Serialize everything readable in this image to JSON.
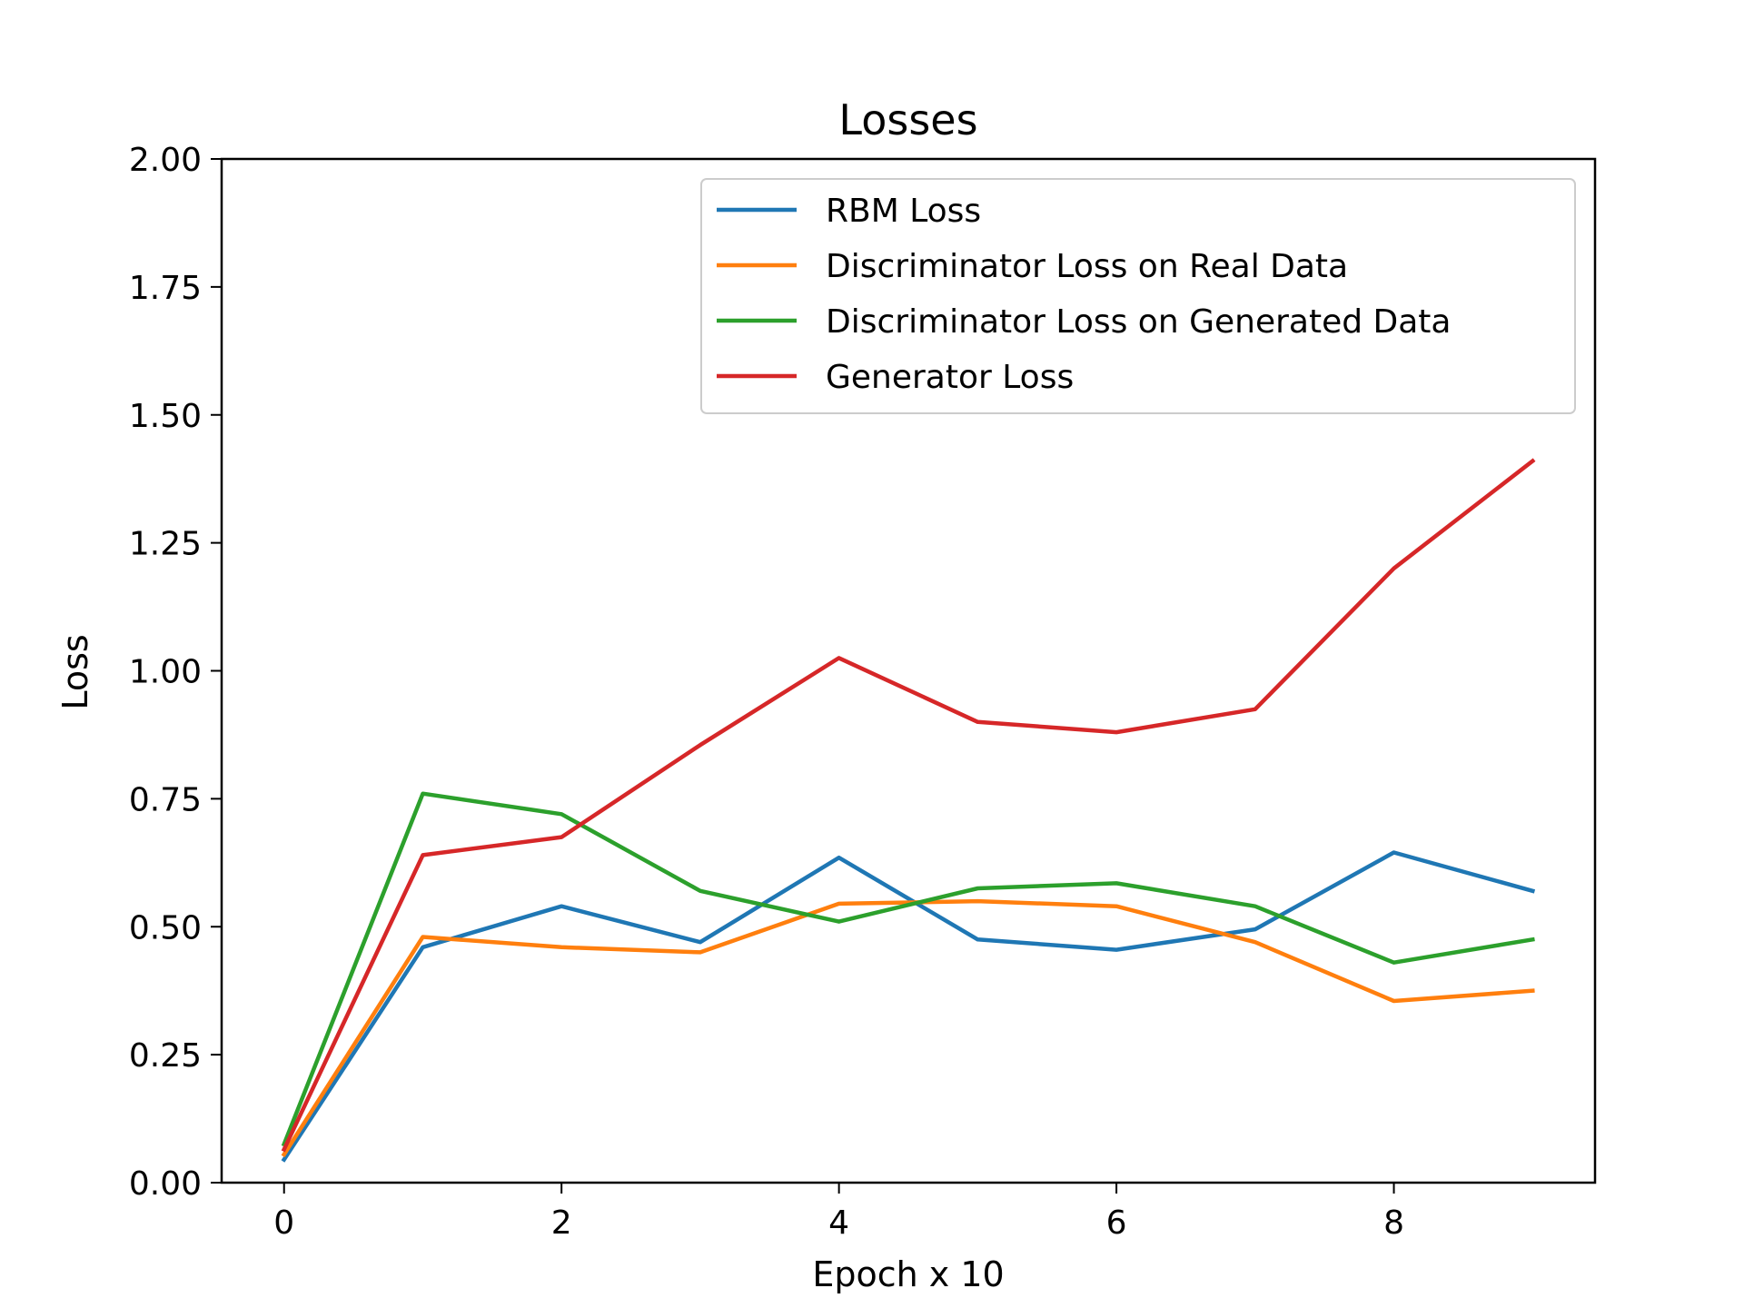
{
  "chart_data": {
    "type": "line",
    "title": "Losses",
    "xlabel": "Epoch x 10",
    "ylabel": "Loss",
    "xlim": [
      -0.45,
      9.45
    ],
    "ylim": [
      0,
      2
    ],
    "x_ticks": [
      0,
      2,
      4,
      6,
      8
    ],
    "x_tick_labels": [
      "0",
      "2",
      "4",
      "6",
      "8"
    ],
    "y_ticks": [
      0,
      0.25,
      0.5,
      0.75,
      1.0,
      1.25,
      1.5,
      1.75,
      2.0
    ],
    "y_tick_labels": [
      "0.00",
      "0.25",
      "0.50",
      "0.75",
      "1.00",
      "1.25",
      "1.50",
      "1.75",
      "2.00"
    ],
    "grid": false,
    "legend_position": "top-right",
    "x": [
      0,
      1,
      2,
      3,
      4,
      5,
      6,
      7,
      8,
      9
    ],
    "series": [
      {
        "name": "RBM Loss",
        "color": "#1f77b4",
        "values": [
          0.045,
          0.46,
          0.54,
          0.47,
          0.635,
          0.475,
          0.455,
          0.495,
          0.645,
          0.57
        ]
      },
      {
        "name": "Discriminator Loss on Real Data",
        "color": "#ff7f0e",
        "values": [
          0.055,
          0.48,
          0.46,
          0.45,
          0.545,
          0.55,
          0.54,
          0.47,
          0.355,
          0.375
        ]
      },
      {
        "name": "Discriminator Loss on Generated Data",
        "color": "#2ca02c",
        "values": [
          0.075,
          0.76,
          0.72,
          0.57,
          0.51,
          0.575,
          0.585,
          0.54,
          0.43,
          0.475
        ]
      },
      {
        "name": "Generator Loss",
        "color": "#d62728",
        "values": [
          0.065,
          0.64,
          0.675,
          0.855,
          1.025,
          0.9,
          0.88,
          0.925,
          1.2,
          1.41
        ]
      }
    ]
  }
}
